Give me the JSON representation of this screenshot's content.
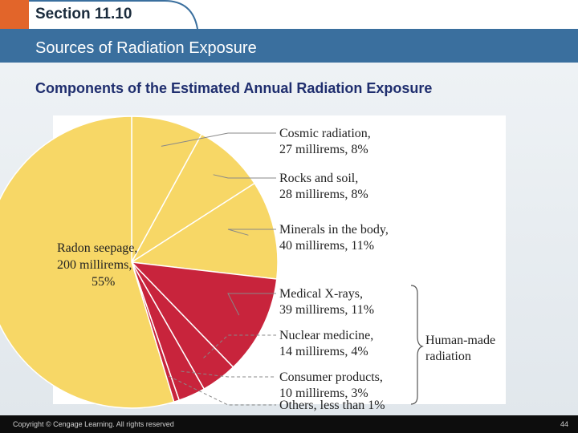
{
  "header": {
    "section": "Section 11.10",
    "title": "Sources of Radiation Exposure"
  },
  "subtitle": "Components of the Estimated Annual Radiation Exposure",
  "colors": {
    "natural": "#f7d766",
    "human_made": "#c8243c",
    "header_bar": "#3a6f9e",
    "accent": "#e2652a"
  },
  "chart_data": {
    "type": "pie",
    "title": "",
    "slices": [
      {
        "label": [
          "Cosmic radiation,",
          "27 millirems, 8%"
        ],
        "value": 8,
        "millirems": 27,
        "group": "natural"
      },
      {
        "label": [
          "Rocks and soil,",
          "28 millirems, 8%"
        ],
        "value": 8,
        "millirems": 28,
        "group": "natural"
      },
      {
        "label": [
          "Minerals in the body,",
          "40 millirems, 11%"
        ],
        "value": 11,
        "millirems": 40,
        "group": "natural"
      },
      {
        "label": [
          "Medical X-rays,",
          "39 millirems, 11%"
        ],
        "value": 11,
        "millirems": 39,
        "group": "human"
      },
      {
        "label": [
          "Nuclear medicine,",
          "14 millirems, 4%"
        ],
        "value": 4,
        "millirems": 14,
        "group": "human"
      },
      {
        "label": [
          "Consumer products,",
          "10 millirems, 3%"
        ],
        "value": 3,
        "millirems": 10,
        "group": "human"
      },
      {
        "label": [
          "Others, less than 1%"
        ],
        "value": 0.6,
        "millirems": null,
        "group": "human"
      },
      {
        "label": [
          "Radon seepage,",
          "200 millirems,",
          "55%"
        ],
        "value": 55,
        "millirems": 200,
        "group": "natural"
      }
    ],
    "bracket_label": [
      "Human-made",
      "radiation"
    ]
  },
  "footer": {
    "copyright": "Copyright © Cengage Learning. All rights reserved",
    "page": "44"
  }
}
